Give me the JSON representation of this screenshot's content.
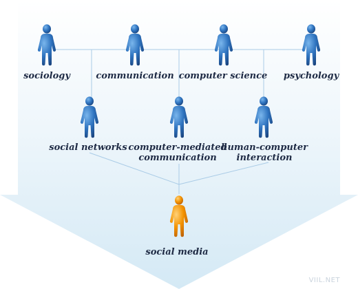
{
  "colors": {
    "person_blue": "#2f74c0",
    "person_orange": "#f39200",
    "connector": "#a9cbe6",
    "arrow_top": "#ffffff",
    "arrow_bottom": "#d8ecf7"
  },
  "icons": {
    "discipline": "person-icon",
    "target": "person-icon"
  },
  "top_row": [
    {
      "label": "sociology"
    },
    {
      "label": "communication"
    },
    {
      "label": "computer science"
    },
    {
      "label": "psychology"
    }
  ],
  "middle_row": [
    {
      "label": "social networks"
    },
    {
      "label": "computer-mediated\ncommunication"
    },
    {
      "label": "human-computer\ninteraction"
    }
  ],
  "target": {
    "label": "social media"
  },
  "watermark": "VIIL.NET"
}
